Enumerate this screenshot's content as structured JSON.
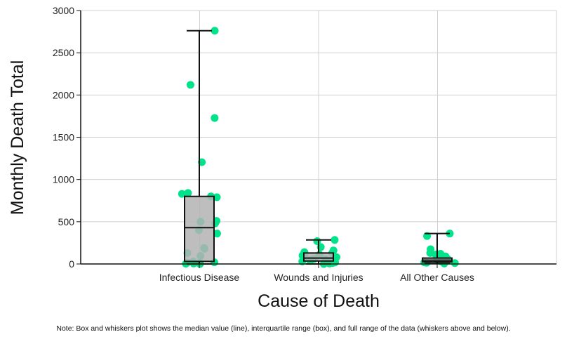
{
  "chart_data": {
    "type": "boxplot",
    "title": "",
    "xlabel": "Cause of Death",
    "ylabel": "Monthly Death Total",
    "ylim": [
      0,
      3000
    ],
    "yticks": [
      0,
      500,
      1000,
      1500,
      2000,
      2500,
      3000
    ],
    "grid": true,
    "categories": [
      "Infectious Disease",
      "Wounds and Injuries",
      "All Other Causes"
    ],
    "boxes": [
      {
        "category": "Infectious Disease",
        "min": 0,
        "q1": 30,
        "median": 430,
        "q3": 800,
        "max": 2761
      },
      {
        "category": "Wounds and Injuries",
        "min": 0,
        "q1": 35,
        "median": 70,
        "q3": 130,
        "max": 285
      },
      {
        "category": "All Other Causes",
        "min": 5,
        "q1": 25,
        "median": 45,
        "q3": 70,
        "max": 360
      }
    ],
    "points": [
      [
        2761,
        2120,
        1728,
        1205,
        840,
        830,
        800,
        790,
        510,
        500,
        480,
        400,
        360,
        190,
        180,
        130,
        95,
        30,
        20,
        15,
        10,
        5,
        3,
        0
      ],
      [
        285,
        270,
        200,
        160,
        140,
        130,
        110,
        100,
        90,
        80,
        70,
        60,
        55,
        50,
        40,
        35,
        30,
        20,
        10,
        5,
        0
      ],
      [
        360,
        330,
        175,
        130,
        120,
        110,
        90,
        70,
        60,
        50,
        40,
        30,
        20,
        15,
        10,
        5
      ]
    ],
    "point_color": "#00e38a",
    "box_color": "#b3b3b3"
  },
  "note": "Note: Box and whiskers plot shows the median value (line), interquartile range (box), and full range of the data (whiskers above and below)."
}
